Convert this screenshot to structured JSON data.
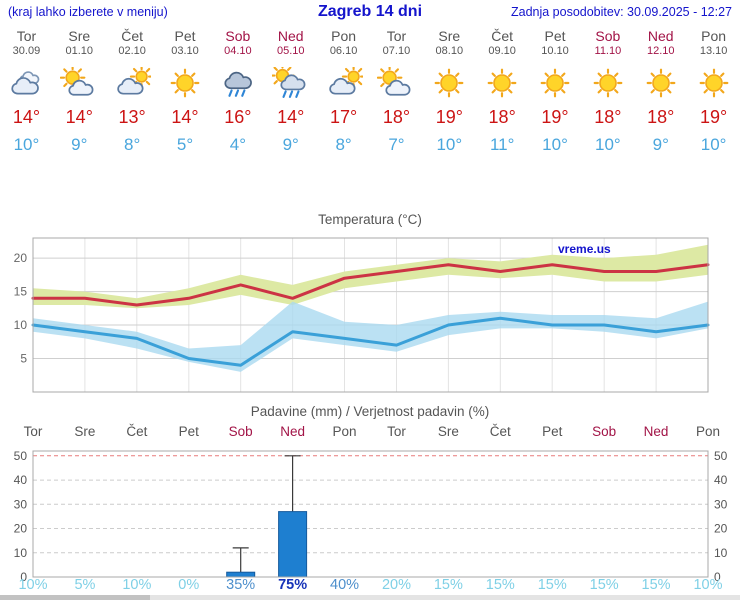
{
  "header": {
    "menu_note": "(kraj lahko izberete v meniju)",
    "title": "Zagreb 14 dni",
    "last_update": "Zadnja posodobitev: 30.09.2025 - 12:27"
  },
  "watermark": "vreme.us",
  "colors": {
    "link_blue": "#1414cc",
    "weekend_red": "#a21447",
    "high_red": "#cc1414",
    "low_blue": "#4aa6dd",
    "bar_blue": "#1e7fd0",
    "bar_edge": "#155a9d",
    "prob_low": "#7fd0e6",
    "prob_mid": "#4d8fcc",
    "prob_high": "#1733b8"
  },
  "forecast_days": [
    {
      "name": "Tor",
      "date": "30.09",
      "icon": "cloudy",
      "high": "14°",
      "low": "10°",
      "highlight": false
    },
    {
      "name": "Sre",
      "date": "01.10",
      "icon": "partly-cloudy",
      "high": "14°",
      "low": "9°",
      "highlight": false
    },
    {
      "name": "Čet",
      "date": "02.10",
      "icon": "mostly-cloudy",
      "high": "13°",
      "low": "8°",
      "highlight": false
    },
    {
      "name": "Pet",
      "date": "03.10",
      "icon": "sunny",
      "high": "14°",
      "low": "5°",
      "highlight": false
    },
    {
      "name": "Sob",
      "date": "04.10",
      "icon": "rain",
      "high": "16°",
      "low": "4°",
      "highlight": true
    },
    {
      "name": "Ned",
      "date": "05.10",
      "icon": "showers",
      "high": "14°",
      "low": "9°",
      "highlight": true
    },
    {
      "name": "Pon",
      "date": "06.10",
      "icon": "mostly-cloudy",
      "high": "17°",
      "low": "8°",
      "highlight": false
    },
    {
      "name": "Tor",
      "date": "07.10",
      "icon": "partly-cloudy",
      "high": "18°",
      "low": "7°",
      "highlight": false
    },
    {
      "name": "Sre",
      "date": "08.10",
      "icon": "sunny",
      "high": "19°",
      "low": "10°",
      "highlight": false
    },
    {
      "name": "Čet",
      "date": "09.10",
      "icon": "sunny",
      "high": "18°",
      "low": "11°",
      "highlight": false
    },
    {
      "name": "Pet",
      "date": "10.10",
      "icon": "sunny",
      "high": "19°",
      "low": "10°",
      "highlight": false
    },
    {
      "name": "Sob",
      "date": "11.10",
      "icon": "sunny",
      "high": "18°",
      "low": "10°",
      "highlight": true
    },
    {
      "name": "Ned",
      "date": "12.10",
      "icon": "sunny",
      "high": "18°",
      "low": "9°",
      "highlight": true
    },
    {
      "name": "Pon",
      "date": "13.10",
      "icon": "sunny",
      "high": "19°",
      "low": "10°",
      "highlight": false
    }
  ],
  "chart_data": [
    {
      "type": "line",
      "title": "Temperatura (°C)",
      "x_labels": [
        "Tor",
        "Sre",
        "Čet",
        "Pet",
        "Sob",
        "Ned",
        "Pon",
        "Tor",
        "Sre",
        "Čet",
        "Pet",
        "Sob",
        "Ned",
        "Pon"
      ],
      "ylim": [
        0,
        23
      ],
      "yticks": [
        5,
        10,
        15,
        20
      ],
      "grid": true,
      "legend": "none",
      "series": [
        {
          "name": "max temperature",
          "color": "#cc3344",
          "values": [
            14,
            14,
            13,
            14,
            16,
            14,
            17,
            18,
            19,
            18,
            19,
            18,
            18,
            19
          ]
        },
        {
          "name": "min temperature",
          "color": "#3aa0d8",
          "values": [
            10,
            9,
            8,
            5,
            4,
            9,
            8,
            7,
            10,
            11,
            10,
            10,
            9,
            10
          ]
        }
      ],
      "bands": [
        {
          "name": "max range",
          "color": "#dde9a4",
          "opacity": 1,
          "upper": [
            15.5,
            15,
            14,
            15.5,
            17.5,
            16,
            18,
            19,
            20,
            19.5,
            20.5,
            20,
            20.5,
            22
          ],
          "lower": [
            13,
            13,
            12.5,
            13,
            14.5,
            13,
            15.5,
            16.5,
            17.5,
            17,
            17.5,
            16.5,
            16.5,
            17.5
          ]
        },
        {
          "name": "min range",
          "color": "#a8d8ef",
          "opacity": 0.78,
          "upper": [
            11,
            10,
            9,
            6.5,
            7,
            13.5,
            10.5,
            10,
            11.5,
            12,
            11.5,
            11.5,
            11,
            13.5
          ],
          "lower": [
            9,
            8,
            6.5,
            4.5,
            3,
            8,
            7,
            6,
            8.5,
            9.5,
            9.5,
            9,
            8,
            9.5
          ]
        }
      ],
      "watermark": "vreme.us"
    },
    {
      "type": "bar",
      "title": "Padavine (mm) / Verjetnost padavin (%)",
      "categories": [
        "Tor",
        "Sre",
        "Čet",
        "Pet",
        "Sob",
        "Ned",
        "Pon",
        "Tor",
        "Sre",
        "Čet",
        "Pet",
        "Sob",
        "Ned",
        "Pon"
      ],
      "values_mm": [
        0,
        0,
        0,
        0,
        2,
        27,
        0,
        0,
        0,
        0,
        0,
        0,
        0,
        0
      ],
      "whisker_max_mm": [
        0,
        0,
        0,
        0,
        12,
        50,
        0,
        0,
        0,
        0,
        0,
        0,
        0,
        0
      ],
      "probability": [
        "10%",
        "5%",
        "10%",
        "0%",
        "35%",
        "75%",
        "40%",
        "20%",
        "15%",
        "15%",
        "15%",
        "15%",
        "15%",
        "10%"
      ],
      "ylim": [
        0,
        52
      ],
      "yticks": [
        0,
        10,
        20,
        30,
        40,
        50
      ],
      "ylabel_left": true,
      "ylabel_right": true,
      "top_limit_line": 50
    }
  ]
}
